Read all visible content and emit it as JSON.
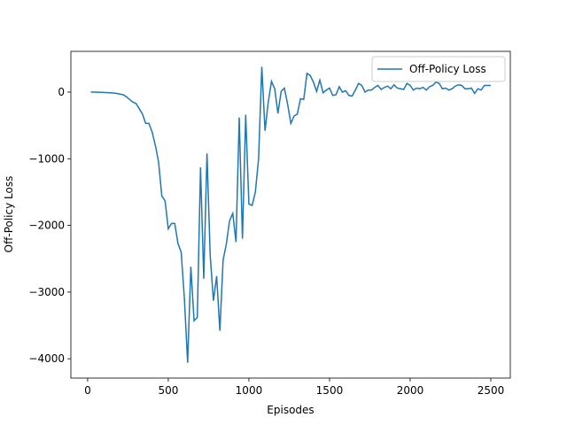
{
  "chart_data": {
    "type": "line",
    "x_label": "Episodes",
    "y_label": "Off-Policy Loss",
    "x": [
      20,
      40,
      60,
      80,
      100,
      120,
      140,
      160,
      180,
      200,
      220,
      240,
      260,
      280,
      300,
      320,
      340,
      360,
      380,
      400,
      420,
      440,
      460,
      480,
      500,
      520,
      540,
      560,
      580,
      600,
      620,
      640,
      660,
      680,
      700,
      720,
      740,
      760,
      780,
      800,
      820,
      840,
      860,
      880,
      900,
      920,
      940,
      960,
      980,
      1000,
      1020,
      1040,
      1060,
      1080,
      1100,
      1120,
      1140,
      1160,
      1180,
      1200,
      1220,
      1240,
      1260,
      1280,
      1300,
      1320,
      1340,
      1360,
      1380,
      1400,
      1420,
      1440,
      1460,
      1480,
      1500,
      1520,
      1540,
      1560,
      1580,
      1600,
      1620,
      1640,
      1660,
      1680,
      1700,
      1720,
      1740,
      1760,
      1780,
      1800,
      1820,
      1840,
      1860,
      1880,
      1900,
      1920,
      1940,
      1960,
      1980,
      2000,
      2020,
      2040,
      2060,
      2080,
      2100,
      2120,
      2140,
      2160,
      2180,
      2200,
      2220,
      2240,
      2260,
      2280,
      2300,
      2320,
      2340,
      2360,
      2380,
      2400,
      2420,
      2440,
      2460,
      2480,
      2500
    ],
    "series": [
      {
        "name": "Off-Policy Loss",
        "color": "#1f77b4",
        "values": [
          0,
          0,
          -2,
          -3,
          -5,
          -8,
          -10,
          -15,
          -20,
          -30,
          -40,
          -70,
          -110,
          -150,
          -170,
          -250,
          -330,
          -470,
          -470,
          -600,
          -800,
          -1050,
          -1560,
          -1630,
          -2050,
          -1970,
          -1970,
          -2270,
          -2400,
          -3100,
          -4060,
          -2620,
          -3430,
          -3380,
          -1130,
          -2800,
          -920,
          -2450,
          -3130,
          -2760,
          -3580,
          -2520,
          -2280,
          -1930,
          -1820,
          -2250,
          -380,
          -2200,
          -340,
          -1680,
          -1700,
          -1500,
          -1000,
          380,
          -580,
          -150,
          160,
          50,
          -320,
          10,
          60,
          -180,
          -470,
          -360,
          -330,
          -100,
          -110,
          280,
          250,
          150,
          10,
          180,
          -10,
          30,
          60,
          -50,
          -40,
          80,
          0,
          20,
          -50,
          -60,
          30,
          130,
          100,
          0,
          30,
          30,
          70,
          100,
          40,
          70,
          90,
          50,
          110,
          60,
          50,
          40,
          130,
          100,
          30,
          60,
          50,
          70,
          30,
          80,
          100,
          150,
          130,
          50,
          60,
          30,
          50,
          90,
          110,
          100,
          50,
          50,
          60,
          -20,
          50,
          30,
          100,
          100,
          100
        ]
      }
    ],
    "xlim": [
      -104,
      2621
    ],
    "ylim": [
      -4290,
      611
    ],
    "xticks": [
      0,
      500,
      1000,
      1500,
      2000,
      2500
    ],
    "yticks": [
      {
        "value": -4000,
        "label": "−4000"
      },
      {
        "value": -3000,
        "label": "−3000"
      },
      {
        "value": -2000,
        "label": "−2000"
      },
      {
        "value": -1000,
        "label": "−1000"
      },
      0
    ],
    "legend": "upper right"
  }
}
